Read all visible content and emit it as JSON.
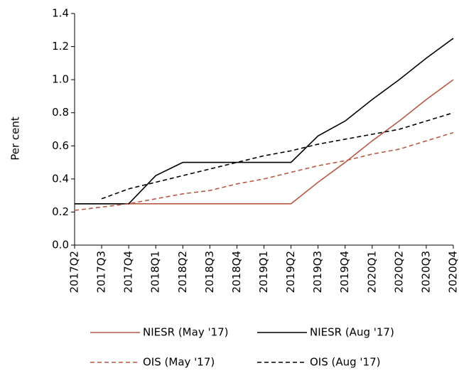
{
  "chart_data": {
    "type": "line",
    "y_label": "Per cent",
    "categories": [
      "2017Q2",
      "2017Q3",
      "2017Q4",
      "2018Q1",
      "2018Q2",
      "2018Q3",
      "2018Q4",
      "2019Q1",
      "2019Q2",
      "2019Q3",
      "2019Q4",
      "2020Q1",
      "2020Q2",
      "2020Q3",
      "2020Q4"
    ],
    "series": [
      {
        "name": "NIESR (May '17)",
        "color": "#b85a43",
        "dashed": false,
        "values": [
          0.25,
          0.25,
          0.25,
          0.25,
          0.25,
          0.25,
          0.25,
          0.25,
          0.25,
          0.38,
          0.5,
          0.63,
          0.75,
          0.88,
          1.0
        ]
      },
      {
        "name": "NIESR  (Aug '17)",
        "color": "#000000",
        "dashed": false,
        "values": [
          0.25,
          0.25,
          0.25,
          0.42,
          0.5,
          0.5,
          0.5,
          0.5,
          0.5,
          0.66,
          0.75,
          0.88,
          1.0,
          1.13,
          1.25
        ]
      },
      {
        "name": "OIS (May '17)",
        "color": "#b85a43",
        "dashed": true,
        "values": [
          0.21,
          0.23,
          0.25,
          0.28,
          0.31,
          0.33,
          0.37,
          0.4,
          0.44,
          0.48,
          0.51,
          0.55,
          0.58,
          0.63,
          0.68
        ]
      },
      {
        "name": "OIS (Aug '17)",
        "color": "#000000",
        "dashed": true,
        "values": [
          null,
          0.28,
          0.34,
          0.38,
          0.42,
          0.46,
          0.5,
          0.54,
          0.57,
          0.61,
          0.64,
          0.67,
          0.7,
          0.75,
          0.8
        ]
      }
    ],
    "ylim": [
      0,
      1.4
    ],
    "yticks": [
      {
        "value": 0,
        "label": "0.0"
      },
      0.2,
      0.4,
      0.6,
      0.8,
      {
        "value": 1,
        "label": "1.0"
      },
      1.2,
      1.4
    ]
  }
}
